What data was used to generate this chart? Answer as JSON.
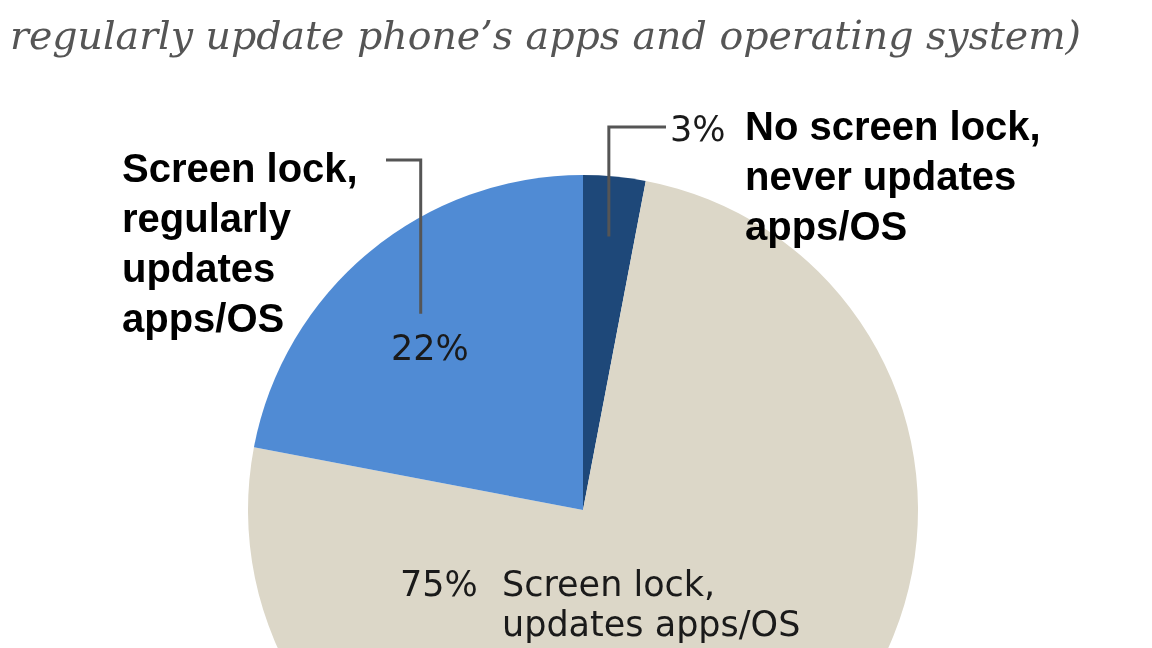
{
  "chart_data": {
    "type": "pie",
    "subtitle": "regularly update phone’s apps and operating system)",
    "categories": [
      "No screen lock, never updates apps/OS",
      "Screen lock, updates apps/OS",
      "Screen lock, regularly updates apps/OS"
    ],
    "values": [
      3,
      75,
      22
    ],
    "colors": [
      "#1e4879",
      "#dcd7c8",
      "#508bd4"
    ],
    "value_labels": [
      "3%",
      "75%",
      "22%"
    ]
  }
}
